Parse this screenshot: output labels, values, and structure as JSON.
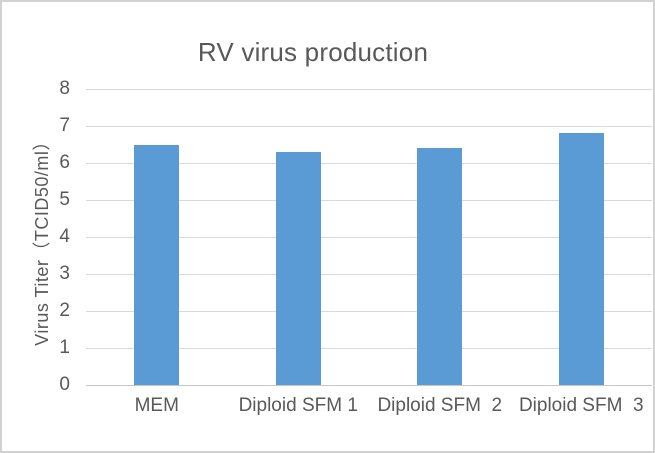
{
  "chart_data": {
    "type": "bar",
    "title": "RV virus production",
    "categories": [
      "MEM",
      "Diploid SFM 1",
      "Diploid SFM  2",
      "Diploid SFM  3"
    ],
    "values": [
      6.5,
      6.3,
      6.4,
      6.8
    ],
    "xlabel": "",
    "ylabel": "Virus Titer（TCID50/ml）",
    "ylim": [
      0,
      8
    ],
    "yticks": [
      0,
      1,
      2,
      3,
      4,
      5,
      6,
      7,
      8
    ],
    "grid": true,
    "legend": "none",
    "colors": {
      "bar": "#5B9BD5",
      "gridline": "#d9d9d9",
      "axis_line": "#c6c6c6",
      "text": "#595959",
      "background": "#ffffff",
      "frame_border": "#d2d2d2"
    }
  }
}
